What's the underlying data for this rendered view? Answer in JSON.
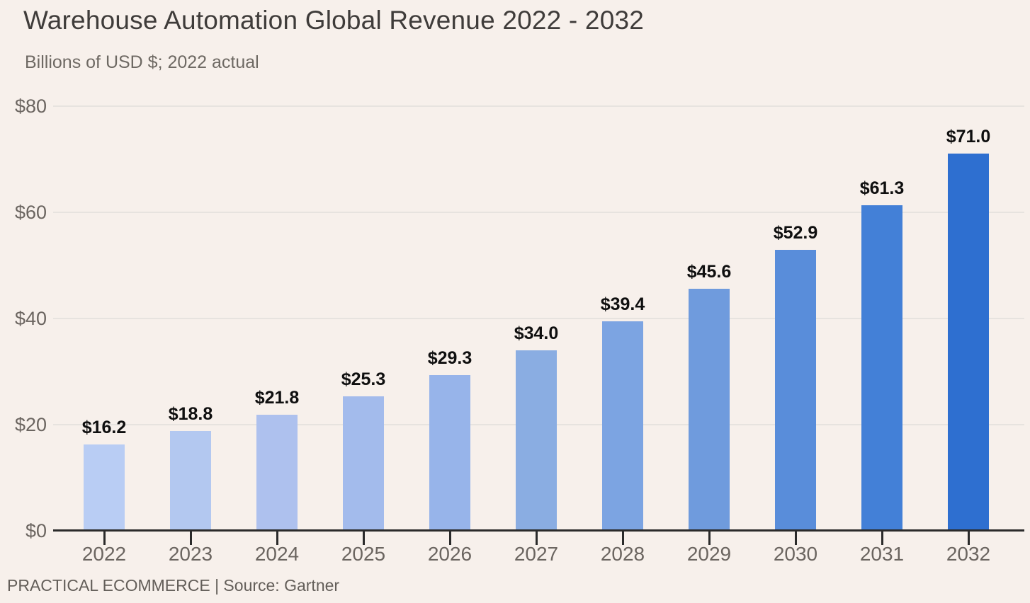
{
  "chart_data": {
    "type": "bar",
    "title": "Warehouse Automation Global Revenue 2022 - 2032",
    "subtitle": "Billions of USD $; 2022 actual",
    "source": "PRACTICAL ECOMMERCE | Source: Gartner",
    "categories": [
      "2022",
      "2023",
      "2024",
      "2025",
      "2026",
      "2027",
      "2028",
      "2029",
      "2030",
      "2031",
      "2032"
    ],
    "values": [
      16.2,
      18.8,
      21.8,
      25.3,
      29.3,
      34.0,
      39.4,
      45.6,
      52.9,
      61.3,
      71.0
    ],
    "value_labels": [
      "$16.2",
      "$18.8",
      "$21.8",
      "$25.3",
      "$29.3",
      "$34.0",
      "$39.4",
      "$45.6",
      "$52.9",
      "$61.3",
      "$71.0"
    ],
    "bar_colors": [
      "#b9cdf4",
      "#b3c8f0",
      "#aec1ee",
      "#a3bbec",
      "#97b4ea",
      "#8aade2",
      "#7ca4e2",
      "#6f9bdd",
      "#598dda",
      "#4380d7",
      "#2e6fd0"
    ],
    "ylim": [
      0,
      80
    ],
    "y_ticks": [
      {
        "value": 0,
        "label": "$0"
      },
      {
        "value": 20,
        "label": "$20"
      },
      {
        "value": 40,
        "label": "$40"
      },
      {
        "value": 60,
        "label": "$60"
      },
      {
        "value": 80,
        "label": "$80"
      }
    ],
    "grid": "horizontal",
    "legend": "none",
    "colors": {
      "background": "#f7f0eb",
      "gridline": "#e7e3df",
      "axis": "#2b2b2b",
      "tick_label": "#6b6560",
      "title": "#3f3c3a",
      "subtitle": "#6e6963",
      "value_label": "#0f0f0f",
      "footer": "#635e59"
    }
  }
}
